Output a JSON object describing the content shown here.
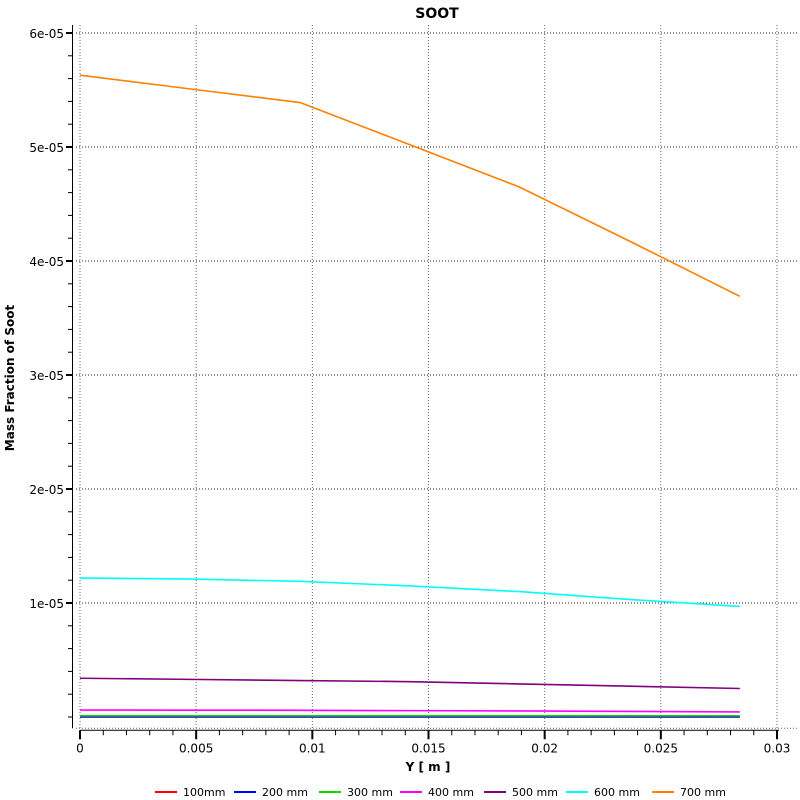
{
  "chart_data": {
    "type": "line",
    "title": "SOOT",
    "xlabel": "Y [ m ]",
    "ylabel": "Mass Fraction of Soot",
    "xlim": [
      0,
      0.03
    ],
    "ylim": [
      -9e-07,
      6e-05
    ],
    "xticks": [
      "0",
      "0.005",
      "0.01",
      "0.015",
      "0.02",
      "0.025",
      "0.03"
    ],
    "xtick_values": [
      0,
      0.005,
      0.01,
      0.015,
      0.02,
      0.025,
      0.03
    ],
    "yticks": [
      "1e-05",
      "2e-05",
      "3e-05",
      "4e-05",
      "5e-05",
      "6e-05"
    ],
    "ytick_values": [
      1e-05,
      2e-05,
      3e-05,
      4e-05,
      5e-05,
      6e-05
    ],
    "grid": true,
    "legend_position": "bottom",
    "x": [
      0,
      0.00473,
      0.00947,
      0.0142,
      0.0189,
      0.0237,
      0.0284
    ],
    "series": [
      {
        "name": "100mm",
        "color": "#ff0000",
        "values": [
          4e-09,
          4e-09,
          4e-09,
          4e-09,
          4e-09,
          4e-09,
          4e-09
        ]
      },
      {
        "name": "200 mm",
        "color": "#0000ff",
        "values": [
          2e-08,
          2e-08,
          2e-08,
          2e-08,
          2e-08,
          2e-08,
          2e-08
        ]
      },
      {
        "name": "300 mm",
        "color": "#00e000",
        "values": [
          1e-07,
          1e-07,
          1e-07,
          1e-07,
          1e-07,
          1e-07,
          1e-07
        ]
      },
      {
        "name": "400 mm",
        "color": "#ff00ff",
        "values": [
          6.1e-07,
          6e-07,
          5.9e-07,
          5.6e-07,
          5.3e-07,
          4.9e-07,
          4.4e-07
        ]
      },
      {
        "name": "500 mm",
        "color": "#800080",
        "values": [
          3.4e-06,
          3.3e-06,
          3.2e-06,
          3.1e-06,
          2.9e-06,
          2.7e-06,
          2.5e-06
        ]
      },
      {
        "name": "600 mm",
        "color": "#00ffff",
        "values": [
          1.22e-05,
          1.21e-05,
          1.19e-05,
          1.15e-05,
          1.1e-05,
          1.03e-05,
          9.7e-06
        ]
      },
      {
        "name": "700 mm",
        "color": "#ff8000",
        "values": [
          5.63e-05,
          5.51e-05,
          5.39e-05,
          5.02e-05,
          4.65e-05,
          4.17e-05,
          3.69e-05
        ]
      }
    ]
  }
}
